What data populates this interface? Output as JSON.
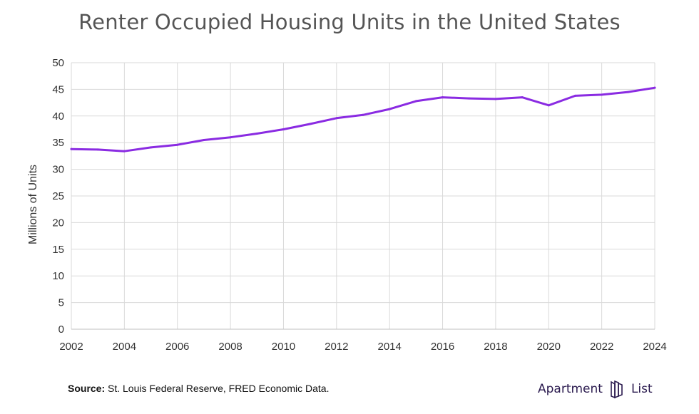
{
  "chart_data": {
    "type": "line",
    "title": "Renter Occupied Housing Units in the United States",
    "xlabel": "",
    "ylabel": "Millions of Units",
    "x": [
      2002,
      2003,
      2004,
      2005,
      2006,
      2007,
      2008,
      2009,
      2010,
      2011,
      2012,
      2013,
      2014,
      2015,
      2016,
      2017,
      2018,
      2019,
      2020,
      2021,
      2022,
      2023,
      2024
    ],
    "series": [
      {
        "name": "Renter Occupied Housing Units",
        "values": [
          33.8,
          33.7,
          33.4,
          34.1,
          34.6,
          35.5,
          36.0,
          36.7,
          37.5,
          38.5,
          39.6,
          40.2,
          41.3,
          42.8,
          43.5,
          43.3,
          43.2,
          43.5,
          42.0,
          43.8,
          44.0,
          44.5,
          45.3
        ],
        "color": "#8a2be2"
      }
    ],
    "xlim": [
      2002,
      2024
    ],
    "ylim": [
      0,
      50
    ],
    "x_ticks": [
      "2002",
      "2004",
      "2006",
      "2008",
      "2010",
      "2012",
      "2014",
      "2016",
      "2018",
      "2020",
      "2022",
      "2024"
    ],
    "y_ticks": [
      "0",
      "5",
      "10",
      "15",
      "20",
      "25",
      "30",
      "35",
      "40",
      "45",
      "50"
    ],
    "grid": true,
    "legend": "none"
  },
  "footer": {
    "source_label": "Source:",
    "source_text": " St. Louis Federal Reserve, FRED Economic Data.",
    "brand_left": "Apartment",
    "brand_right": "List",
    "brand_color": "#2b1b4f"
  },
  "colors": {
    "grid": "#d9d9d9",
    "line": "#8a2be2",
    "title": "#555555"
  }
}
